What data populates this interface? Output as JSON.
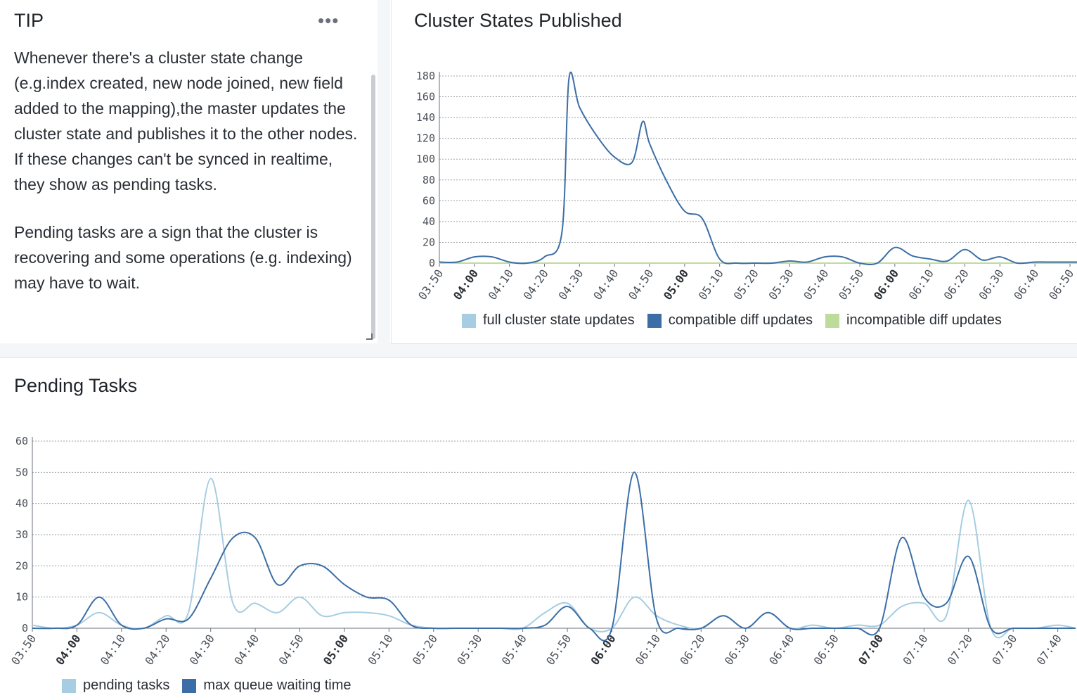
{
  "tip": {
    "title": "TIP",
    "menu_icon": "more-horizontal-icon",
    "paragraphs": [
      "Whenever there's a cluster state change (e.g.index created, new node joined, new field added to the mapping),the master updates the cluster state and publishes it to the other nodes. If these changes can't be synced in realtime, they show as pending tasks.",
      "Pending tasks are a sign that the cluster is recovering and some operations (e.g. indexing) may have to wait."
    ]
  },
  "chart_data": [
    {
      "type": "line",
      "title": "Cluster States Published",
      "ylim": [
        0,
        180
      ],
      "yticks": [
        0,
        20,
        40,
        60,
        80,
        100,
        120,
        140,
        160,
        180
      ],
      "xticks": [
        "03:50",
        "04:00",
        "04:10",
        "04:20",
        "04:30",
        "04:40",
        "04:50",
        "05:00",
        "05:10",
        "05:20",
        "05:30",
        "05:40",
        "05:50",
        "06:00",
        "06:10",
        "06:20",
        "06:30",
        "06:40",
        "06:50"
      ],
      "bold_ticks": [
        "04:00",
        "05:00",
        "06:00"
      ],
      "x_minutes_range": [
        0,
        182
      ],
      "grid": true,
      "legend_position": "bottom",
      "series": [
        {
          "name": "full cluster state updates",
          "color": "#a6cde2",
          "x": [
            0,
            182
          ],
          "values": [
            0,
            0
          ]
        },
        {
          "name": "compatible diff updates",
          "color": "#3b6ea6",
          "x": [
            0,
            5,
            10,
            15,
            20,
            25,
            30,
            35,
            37,
            40,
            45,
            50,
            55,
            58,
            60,
            65,
            70,
            75,
            80,
            85,
            90,
            95,
            100,
            105,
            110,
            115,
            120,
            125,
            130,
            135,
            140,
            145,
            150,
            155,
            160,
            165,
            170,
            175,
            182
          ],
          "values": [
            1,
            1,
            6,
            6,
            1,
            0,
            6,
            30,
            178,
            150,
            122,
            102,
            97,
            136,
            115,
            78,
            50,
            43,
            4,
            0,
            0,
            0,
            2,
            1,
            6,
            6,
            0,
            0,
            15,
            7,
            4,
            2,
            13,
            3,
            6,
            0,
            1,
            1,
            1
          ]
        },
        {
          "name": "incompatible diff updates",
          "color": "#bddc9a",
          "x": [
            0,
            182
          ],
          "values": [
            0,
            0
          ]
        }
      ]
    },
    {
      "type": "line",
      "title": "Pending Tasks",
      "ylim": [
        0,
        60
      ],
      "yticks": [
        0,
        10,
        20,
        30,
        40,
        50,
        60
      ],
      "xticks": [
        "03:50",
        "04:00",
        "04:10",
        "04:20",
        "04:30",
        "04:40",
        "04:50",
        "05:00",
        "05:10",
        "05:20",
        "05:30",
        "05:40",
        "05:50",
        "06:00",
        "06:10",
        "06:20",
        "06:30",
        "06:40",
        "06:50",
        "07:00",
        "07:10",
        "07:20",
        "07:30",
        "07:40"
      ],
      "bold_ticks": [
        "04:00",
        "05:00",
        "06:00",
        "07:00"
      ],
      "x_minutes_range": [
        0,
        234
      ],
      "grid": true,
      "legend_position": "bottom-left",
      "series": [
        {
          "name": "pending tasks",
          "color": "#a6cde2",
          "x": [
            0,
            5,
            10,
            15,
            20,
            25,
            30,
            35,
            40,
            45,
            50,
            55,
            60,
            65,
            70,
            75,
            80,
            85,
            90,
            95,
            100,
            105,
            110,
            115,
            120,
            125,
            130,
            135,
            140,
            145,
            150,
            155,
            160,
            165,
            170,
            175,
            180,
            185,
            190,
            195,
            200,
            205,
            210,
            215,
            220,
            225,
            230,
            234
          ],
          "values": [
            1,
            0,
            1,
            5,
            1,
            0,
            4,
            5,
            48,
            8,
            8,
            5,
            10,
            4,
            5,
            5,
            4,
            1,
            0,
            0,
            0,
            0,
            0,
            5,
            8,
            0,
            0,
            10,
            4,
            1,
            0,
            4,
            0,
            5,
            0,
            1,
            0,
            1,
            1,
            7,
            8,
            4,
            41,
            0,
            0,
            0,
            1,
            0
          ]
        },
        {
          "name": "max queue waiting time",
          "color": "#3b6ea6",
          "x": [
            0,
            5,
            10,
            15,
            20,
            25,
            30,
            35,
            40,
            45,
            50,
            55,
            60,
            65,
            70,
            75,
            80,
            85,
            90,
            95,
            100,
            105,
            110,
            115,
            120,
            125,
            130,
            135,
            140,
            145,
            150,
            155,
            160,
            165,
            170,
            175,
            180,
            185,
            190,
            195,
            200,
            205,
            210,
            215,
            220,
            225,
            230,
            234
          ],
          "values": [
            0,
            0,
            1,
            10,
            1,
            0,
            3,
            3,
            16,
            29,
            29,
            14,
            20,
            20,
            14,
            10,
            9,
            1,
            0,
            0,
            0,
            0,
            0,
            1,
            7,
            0,
            0,
            50,
            3,
            0,
            0,
            4,
            0,
            5,
            0,
            0,
            0,
            0,
            0,
            29,
            10,
            8,
            23,
            0,
            0,
            0,
            0,
            0
          ]
        }
      ]
    }
  ]
}
